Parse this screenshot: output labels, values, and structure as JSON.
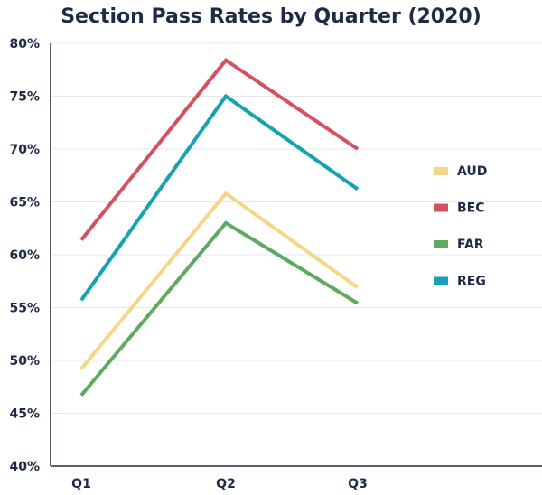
{
  "chart_data": {
    "type": "line",
    "title": "Section Pass Rates by Quarter (2020)",
    "xlabel": "",
    "ylabel": "",
    "categories": [
      "Q1",
      "Q2",
      "Q3"
    ],
    "ylim": [
      40,
      80
    ],
    "yticks": [
      40,
      45,
      50,
      55,
      60,
      65,
      70,
      75,
      80
    ],
    "ytick_labels": [
      "40%",
      "45%",
      "50%",
      "55%",
      "60%",
      "65%",
      "70%",
      "75%",
      "80%"
    ],
    "grid": "horizontal",
    "legend_position": "right",
    "series": [
      {
        "name": "AUD",
        "color": "#f6d586",
        "values": [
          49.2,
          65.8,
          56.9
        ]
      },
      {
        "name": "BEC",
        "color": "#d6505f",
        "values": [
          61.4,
          78.4,
          70.0
        ]
      },
      {
        "name": "FAR",
        "color": "#5cab5e",
        "values": [
          46.7,
          63.0,
          55.4
        ]
      },
      {
        "name": "REG",
        "color": "#15a3b1",
        "values": [
          55.7,
          75.0,
          66.2
        ]
      }
    ]
  }
}
